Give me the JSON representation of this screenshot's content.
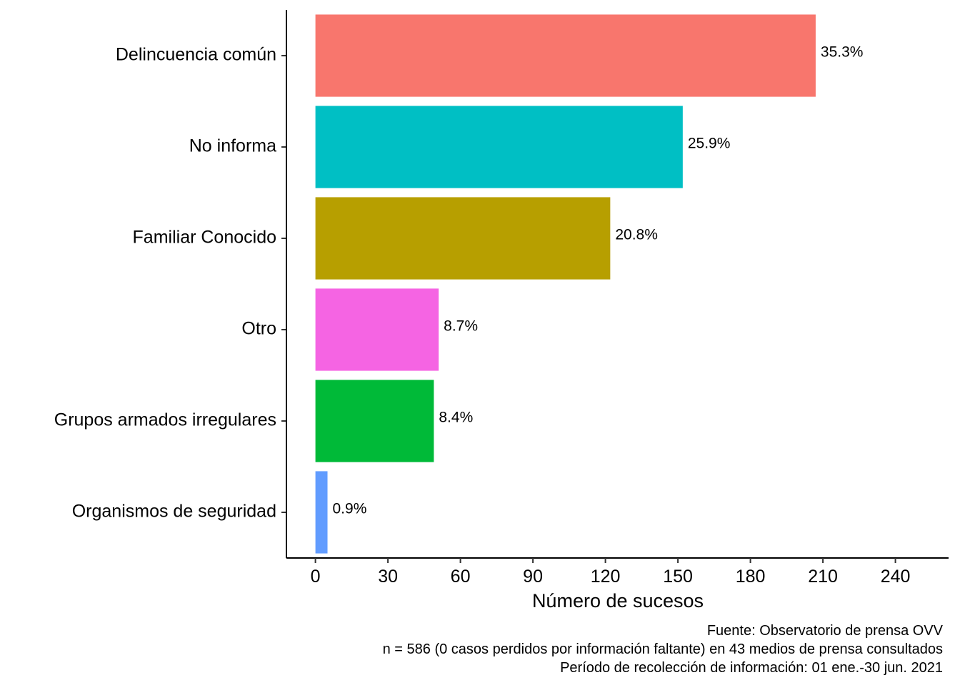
{
  "chart_data": {
    "type": "bar",
    "orientation": "horizontal",
    "categories": [
      "Delincuencia común",
      "No informa",
      "Familiar Conocido",
      "Otro",
      "Grupos armados irregulares",
      "Organismos de seguridad"
    ],
    "values": [
      207,
      152,
      122,
      51,
      49,
      5
    ],
    "labels": [
      "35.3%",
      "25.9%",
      "20.8%",
      "8.7%",
      "8.4%",
      "0.9%"
    ],
    "colors": [
      "#F8766D",
      "#00BFC4",
      "#B79F00",
      "#F564E3",
      "#00BA38",
      "#619CFF"
    ],
    "xlabel": "Número de sucesos",
    "ylabel": "",
    "xlim": [
      -12,
      262
    ],
    "xticks": [
      0,
      30,
      60,
      90,
      120,
      150,
      180,
      210,
      240
    ],
    "grid": false,
    "legend": "none"
  },
  "caption": {
    "lines": [
      "Fuente: Observatorio de prensa OVV",
      "n = 586 (0 casos perdidos por información faltante) en 43 medios de prensa consultados",
      "Período de recolección de información: 01 ene.-30 jun. 2021"
    ]
  }
}
